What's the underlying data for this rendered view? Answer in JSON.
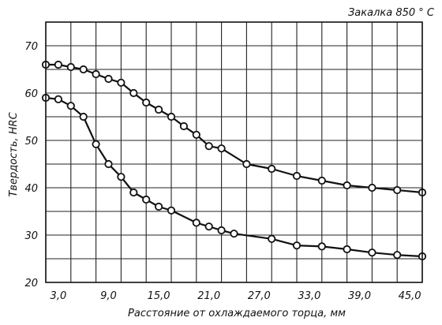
{
  "chart_data": {
    "type": "line",
    "title": "Закалка 850 ° С",
    "xlabel": "Расстояние от охлаждаемого торца, мм",
    "ylabel": "Твердость, HRC",
    "xlim": [
      1.5,
      46.5
    ],
    "ylim": [
      20,
      75
    ],
    "x_ticks": [
      3.0,
      9.0,
      15.0,
      21.0,
      27.0,
      33.0,
      39.0,
      45.0
    ],
    "x_tick_labels": [
      "3,0",
      "9,0",
      "15,0",
      "21,0",
      "27,0",
      "33,0",
      "39,0",
      "45,0"
    ],
    "y_ticks": [
      20,
      30,
      40,
      50,
      60,
      70
    ],
    "y_tick_labels": [
      "20",
      "30",
      "40",
      "50",
      "60",
      "70"
    ],
    "grid": true,
    "x_grid": [
      1.5,
      4.5,
      7.5,
      10.5,
      13.5,
      16.5,
      19.5,
      22.5,
      25.5,
      28.5,
      31.5,
      34.5,
      37.5,
      40.5,
      43.5,
      46.5
    ],
    "y_grid": [
      20,
      25,
      30,
      35,
      40,
      45,
      50,
      55,
      60,
      65,
      70,
      75
    ],
    "series": [
      {
        "name": "",
        "x": [
          1.5,
          3.0,
          4.5,
          6.0,
          7.5,
          9.0,
          10.5,
          12.0,
          13.5,
          15.0,
          16.5,
          18.0,
          19.5,
          21.0,
          22.5,
          25.5,
          28.5,
          31.5,
          34.5,
          37.5,
          40.5,
          43.5,
          46.5
        ],
        "values": [
          66.0,
          66.0,
          65.5,
          65.0,
          64.0,
          63.0,
          62.2,
          60.0,
          58.0,
          56.5,
          55.0,
          53.0,
          51.2,
          48.8,
          48.3,
          45.0,
          44.0,
          42.5,
          41.5,
          40.5,
          40.0,
          39.5,
          39.0
        ]
      },
      {
        "name": "",
        "x": [
          1.5,
          3.0,
          4.5,
          6.0,
          7.5,
          9.0,
          10.5,
          12.0,
          13.5,
          15.0,
          16.5,
          19.5,
          21.0,
          22.5,
          24.0,
          28.5,
          31.5,
          34.5,
          37.5,
          40.5,
          43.5,
          46.5
        ],
        "values": [
          59.0,
          58.7,
          57.3,
          55.0,
          49.2,
          45.0,
          42.3,
          39.0,
          37.5,
          36.0,
          35.2,
          32.6,
          31.8,
          31.0,
          30.3,
          29.2,
          27.8,
          27.6,
          27.0,
          26.3,
          25.8,
          25.5
        ]
      }
    ]
  }
}
